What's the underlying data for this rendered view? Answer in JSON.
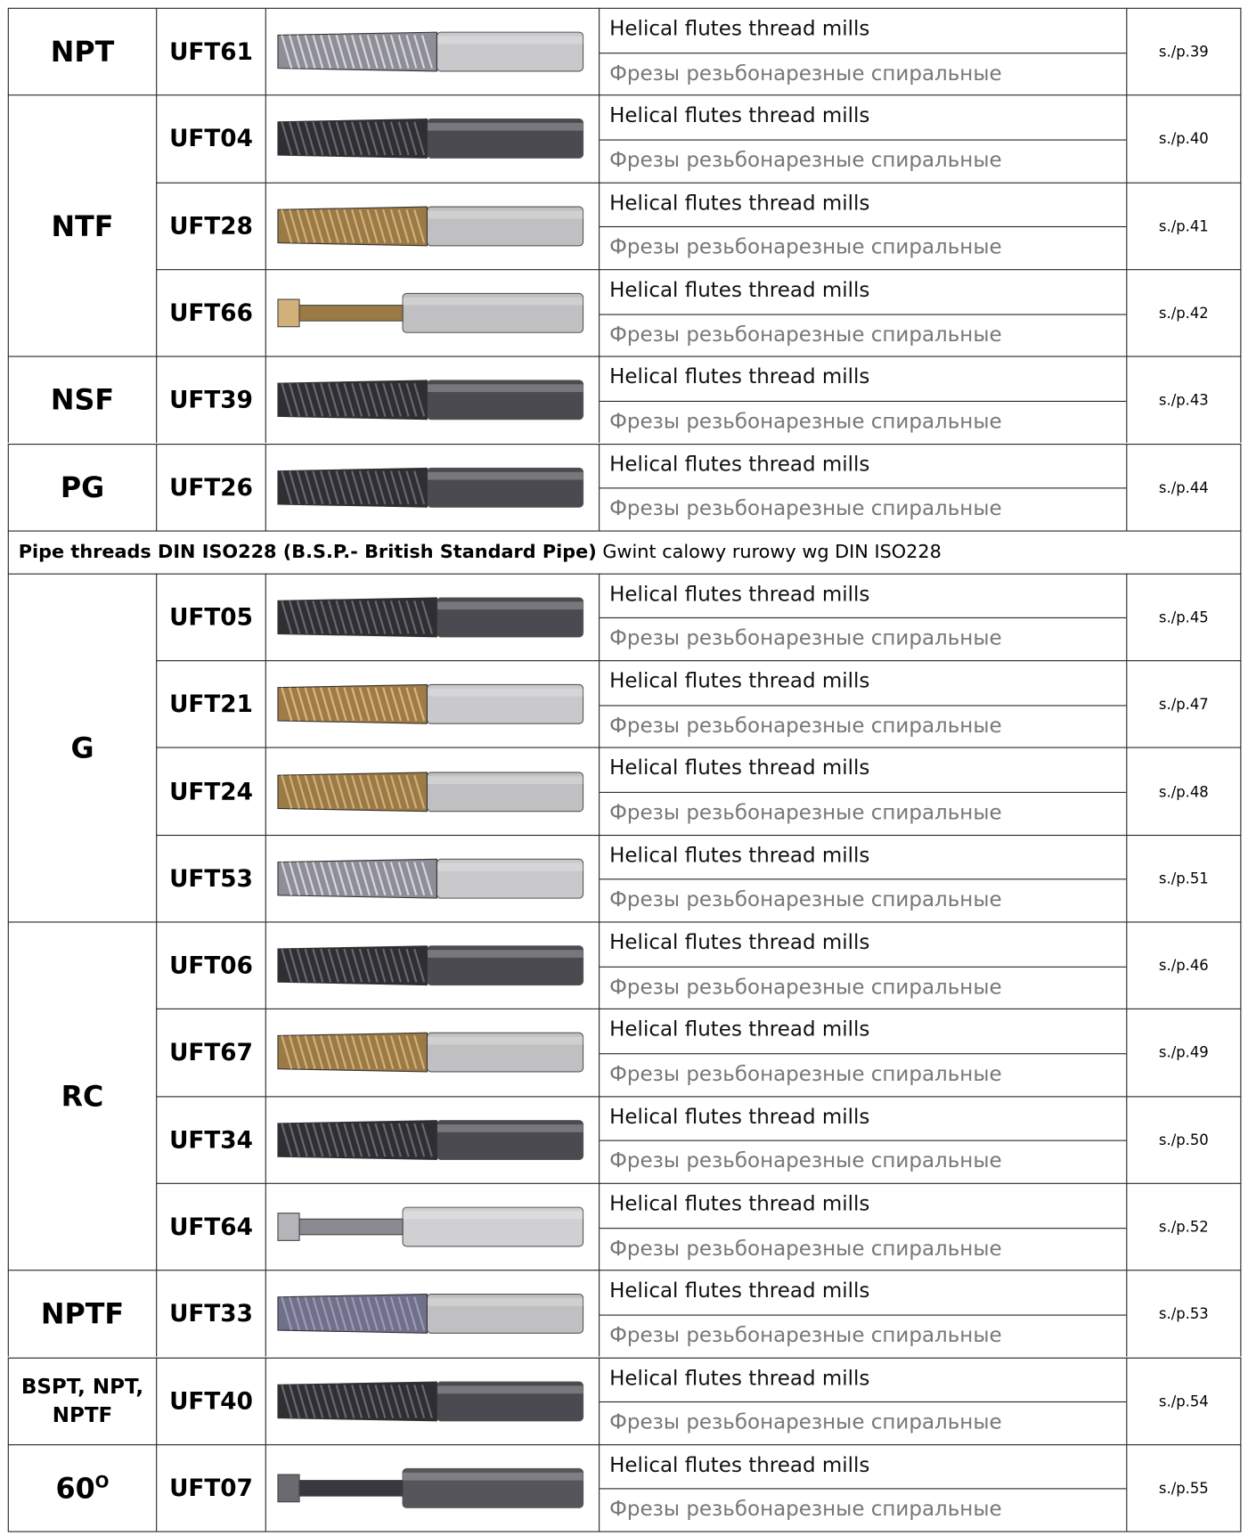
{
  "blocks": [
    {
      "label": "NPT",
      "items": [
        {
          "code": "UFT61",
          "en": "Helical flutes thread mills",
          "ru": "Фрезы резьбонарезные спиральные",
          "page": "s./p.39"
        }
      ]
    },
    {
      "label": "NTF",
      "items": [
        {
          "code": "UFT04",
          "en": "Helical flutes thread mills",
          "ru": "Фрезы резьбонарезные спиральные",
          "page": "s./p.40"
        },
        {
          "code": "UFT28",
          "en": "Helical flutes thread mills",
          "ru": "Фрезы резьбонарезные спиральные",
          "page": "s./p.41"
        },
        {
          "code": "UFT66",
          "en": "Helical flutes thread mills",
          "ru": "Фрезы резьбонарезные спиральные",
          "page": "s./p.42"
        }
      ]
    },
    {
      "label": "NSF",
      "items": [
        {
          "code": "UFT39",
          "en": "Helical flutes thread mills",
          "ru": "Фрезы резьбонарезные спиральные",
          "page": "s./p.43"
        }
      ]
    },
    {
      "label": "PG",
      "items": [
        {
          "code": "UFT26",
          "en": "Helical flutes thread mills",
          "ru": "Фрезы резьбонарезные спиральные",
          "page": "s./p.44"
        }
      ]
    },
    {
      "heading": "Pipe threads DIN ISO228 (B.S.P.- British Standard Pipe)",
      "text": "Gwint calowy rurowy wg DIN ISO228"
    },
    {
      "label": "G",
      "items": [
        {
          "code": "UFT05",
          "en": "Helical flutes thread mills",
          "ru": "Фрезы резьбонарезные спиральные",
          "page": "s./p.45"
        },
        {
          "code": "UFT21",
          "en": "Helical flutes thread mills",
          "ru": "Фрезы резьбонарезные спиральные",
          "page": "s./p.47"
        },
        {
          "code": "UFT24",
          "en": "Helical flutes thread mills",
          "ru": "Фрезы резьбонарезные спиральные",
          "page": "s./p.48"
        },
        {
          "code": "UFT53",
          "en": "Helical flutes thread mills",
          "ru": "Фрезы резьбонарезные спиральные",
          "page": "s./p.51"
        }
      ]
    },
    {
      "label": "RC",
      "items": [
        {
          "code": "UFT06",
          "en": "Helical flutes thread mills",
          "ru": "Фрезы резьбонарезные спиральные",
          "page": "s./p.46"
        },
        {
          "code": "UFT67",
          "en": "Helical flutes thread mills",
          "ru": "Фрезы резьбонарезные спиральные",
          "page": "s./p.49"
        },
        {
          "code": "UFT34",
          "en": "Helical flutes thread mills",
          "ru": "Фрезы резьбонарезные спиральные",
          "page": "s./p.50"
        },
        {
          "code": "UFT64",
          "en": "Helical flutes thread mills",
          "ru": "Фрезы резьбонарезные спиральные",
          "page": "s./p.52"
        }
      ]
    },
    {
      "label": "NPTF",
      "items": [
        {
          "code": "UFT33",
          "en": "Helical flutes thread mills",
          "ru": "Фрезы резьбонарезные спиральные",
          "page": "s./p.53"
        }
      ]
    },
    {
      "label": "BSPT, NPT, NPTF",
      "items": [
        {
          "code": "UFT40",
          "en": "Helical flutes thread mills",
          "ru": "Фрезы резьбонарезные спиральные",
          "page": "s./p.54"
        }
      ]
    },
    {
      "label": "60",
      "label_sup": "O",
      "items": [
        {
          "code": "UFT07",
          "en": "Helical flutes thread mills",
          "ru": "Фрезы резьбонарезные спиральные",
          "page": "s./p.55"
        }
      ]
    }
  ]
}
